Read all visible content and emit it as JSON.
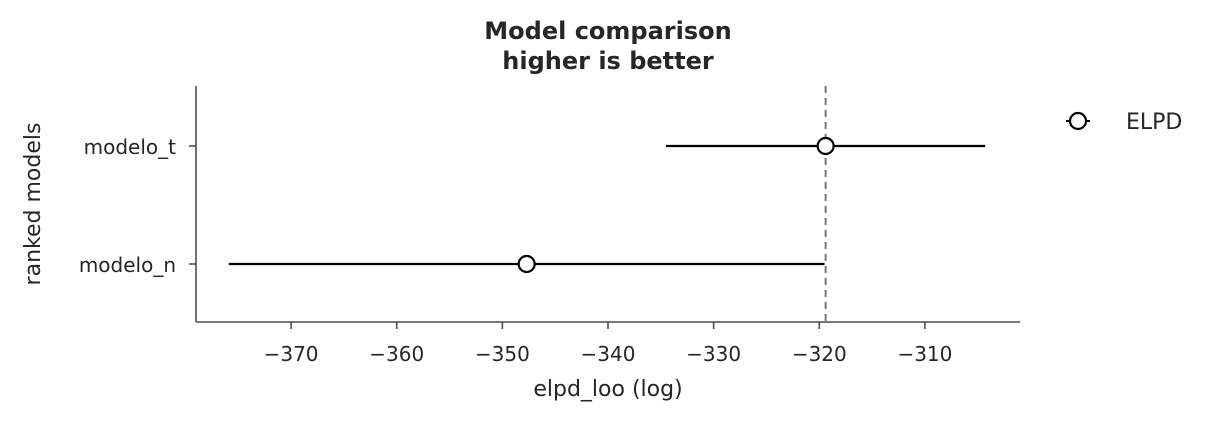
{
  "chart_data": {
    "type": "scatter",
    "title": "Model comparison",
    "subtitle": "higher is better",
    "xlabel": "elpd_loo (log)",
    "ylabel": "ranked models",
    "xlim": [
      -379,
      -301
    ],
    "xticks": [
      -370,
      -360,
      -350,
      -340,
      -330,
      -320,
      -310
    ],
    "xtick_labels": [
      "−370",
      "−360",
      "−350",
      "−340",
      "−330",
      "−320",
      "−310"
    ],
    "categories": [
      "modelo_t",
      "modelo_n"
    ],
    "series": [
      {
        "name": "ELPD",
        "values": [
          -319.4,
          -347.7
        ],
        "error_low": [
          -334.5,
          -375.9
        ],
        "error_high": [
          -304.3,
          -319.5
        ]
      }
    ],
    "reference_line": -319.4,
    "legend_position": "outside-right",
    "grid": false,
    "colors": {
      "marker_edge": "#000000",
      "marker_fill": "#ffffff",
      "errorbar": "#000000",
      "reference_line": "#777777",
      "axis": "#4d4d4d"
    }
  }
}
